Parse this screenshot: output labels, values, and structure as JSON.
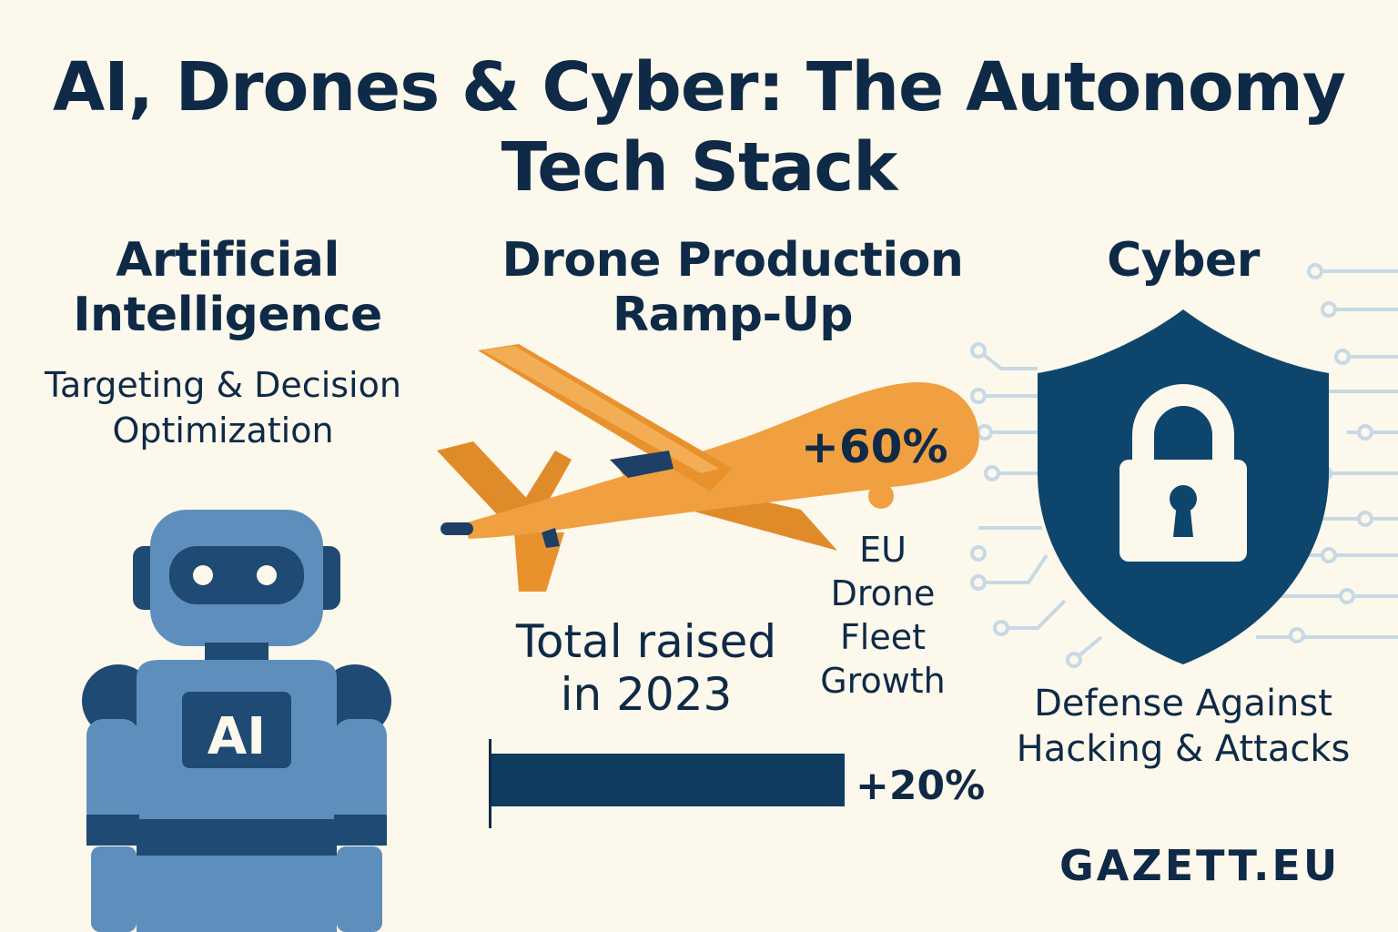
{
  "title": "AI, Drones & Cyber: The Autonomy Tech Stack",
  "ai": {
    "heading": "Artificial Intelligence",
    "subtitle": "Targeting & Decision Optimization",
    "badge": "AI"
  },
  "drones": {
    "heading": "Drone Production Ramp-Up",
    "fleet_growth_value": "+60%",
    "fleet_growth_label": "EU Drone Fleet Growth",
    "raised_label": "Total raised in 2023",
    "raised_value": "+20%",
    "raised_fraction": 0.2
  },
  "cyber": {
    "heading": "Cyber",
    "subtitle": "Defense Against Hacking & Attacks"
  },
  "brand": "GAZETT.EU",
  "colors": {
    "background": "#fcf8ec",
    "navy": "#0f2a47",
    "robot_light": "#5e8fbc",
    "robot_dark": "#1e4a74",
    "drone_orange": "#f0a040",
    "shield": "#0e456c",
    "circuit": "#c7d9e4"
  }
}
